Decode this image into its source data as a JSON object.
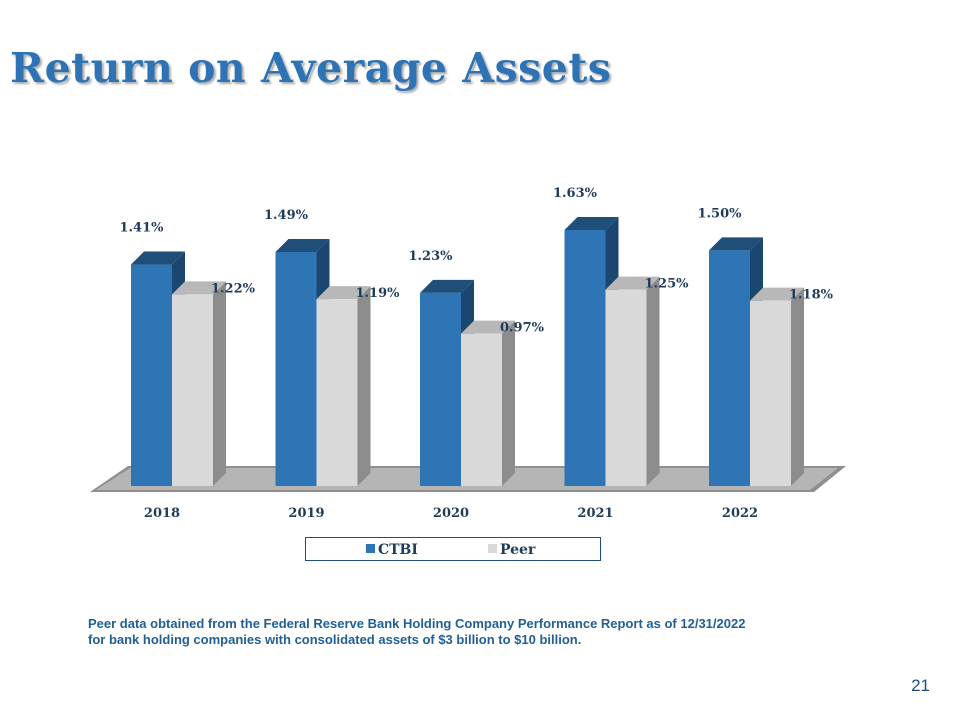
{
  "slide": {
    "title": "Return on Average Assets",
    "footnote_line1": "Peer data obtained from the Federal Reserve Bank Holding Company Performance Report as of 12/31/2022",
    "footnote_line2": "for bank holding companies with consolidated assets of $3 billion to $10 billion.",
    "page_number": "21"
  },
  "chart_data": {
    "type": "bar",
    "title": "",
    "xlabel": "",
    "ylabel": "",
    "categories": [
      "2018",
      "2019",
      "2020",
      "2021",
      "2022"
    ],
    "series": [
      {
        "name": "CTBI",
        "values": [
          1.41,
          1.49,
          1.23,
          1.63,
          1.5
        ],
        "labels": [
          "1.41%",
          "1.49%",
          "1.23%",
          "1.63%",
          "1.50%"
        ],
        "color": "#2e75b6"
      },
      {
        "name": "Peer",
        "values": [
          1.22,
          1.19,
          0.97,
          1.25,
          1.18
        ],
        "labels": [
          "1.22%",
          "1.19%",
          "0.97%",
          "1.25%",
          "1.18%"
        ],
        "color": "#d9d9d9"
      }
    ],
    "ylim": [
      0,
      1.63
    ],
    "grid": false,
    "legend": "bottom",
    "style": "3d-clustered-column"
  }
}
